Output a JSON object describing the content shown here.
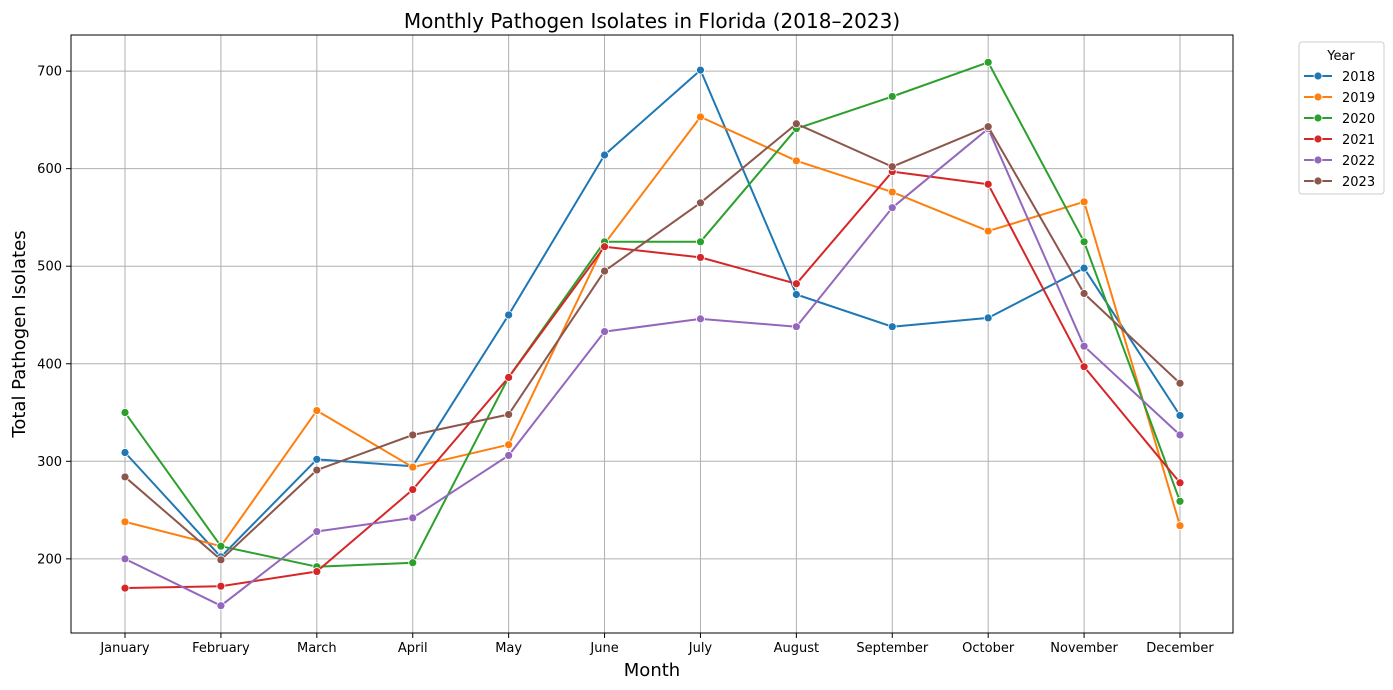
{
  "chart_data": {
    "type": "line",
    "title": "Monthly Pathogen Isolates in Florida (2018–2023)",
    "xlabel": "Month",
    "ylabel": "Total Pathogen Isolates",
    "categories": [
      "January",
      "February",
      "March",
      "April",
      "May",
      "June",
      "July",
      "August",
      "September",
      "October",
      "November",
      "December"
    ],
    "yticks": [
      200,
      300,
      400,
      500,
      600,
      700
    ],
    "ylim": [
      124,
      737
    ],
    "grid": true,
    "legend": {
      "title": "Year",
      "placement": "outside-top-right"
    },
    "series": [
      {
        "name": "2018",
        "color": "#1f77b4",
        "values": [
          309,
          202,
          302,
          295,
          450,
          614,
          701,
          471,
          438,
          447,
          498,
          347
        ]
      },
      {
        "name": "2019",
        "color": "#ff7f0e",
        "values": [
          238,
          213,
          352,
          294,
          317,
          523,
          653,
          608,
          576,
          536,
          566,
          234
        ]
      },
      {
        "name": "2020",
        "color": "#2ca02c",
        "values": [
          350,
          213,
          192,
          196,
          386,
          525,
          525,
          641,
          674,
          709,
          525,
          259
        ]
      },
      {
        "name": "2021",
        "color": "#d62728",
        "values": [
          170,
          172,
          187,
          271,
          386,
          520,
          509,
          482,
          597,
          584,
          397,
          278
        ]
      },
      {
        "name": "2022",
        "color": "#9467bd",
        "values": [
          200,
          152,
          228,
          242,
          306,
          433,
          446,
          438,
          560,
          641,
          418,
          327
        ]
      },
      {
        "name": "2023",
        "color": "#8c564b",
        "values": [
          284,
          199,
          291,
          327,
          348,
          495,
          565,
          646,
          602,
          643,
          472,
          380
        ]
      }
    ]
  }
}
